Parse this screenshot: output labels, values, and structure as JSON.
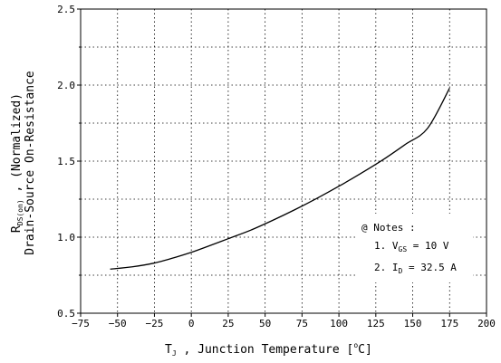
{
  "chart_data": {
    "type": "line",
    "xlabel": {
      "main": "T",
      "sub": "J",
      "rest": " , Junction Temperature  [",
      "unit_sup": "o",
      "unit_end": "C]"
    },
    "ylabel": {
      "line1_main": "R",
      "line1_sub": "DS(on)",
      "line1_rest": "  ,  (Normalized)",
      "line2": "Drain-Source On-Resistance"
    },
    "xlim": [
      -75,
      200
    ],
    "ylim": [
      0.5,
      2.5
    ],
    "xticks": [
      -75,
      -50,
      -25,
      0,
      25,
      50,
      75,
      100,
      125,
      150,
      175,
      200
    ],
    "yticks": [
      0.5,
      1.0,
      1.5,
      2.0,
      2.5
    ],
    "ytick_labels": [
      "0.5",
      "1.0",
      "1.5",
      "2.0",
      "2.5"
    ],
    "grid": true,
    "series": [
      {
        "x": [
          -55,
          -40,
          -25,
          -10,
          0,
          10,
          25,
          40,
          55,
          70,
          85,
          100,
          115,
          130,
          145,
          160,
          175
        ],
        "y": [
          0.79,
          0.805,
          0.83,
          0.87,
          0.9,
          0.935,
          0.99,
          1.045,
          1.11,
          1.18,
          1.255,
          1.335,
          1.42,
          1.51,
          1.61,
          1.715,
          1.98
        ]
      }
    ],
    "notes": {
      "title": "@ Notes :",
      "items": [
        {
          "prefix": "1. V",
          "sub": "GS",
          "suffix": " = 10 V"
        },
        {
          "prefix": "2. I",
          "sub": "D",
          "suffix": " = 32.5 A"
        }
      ]
    }
  }
}
